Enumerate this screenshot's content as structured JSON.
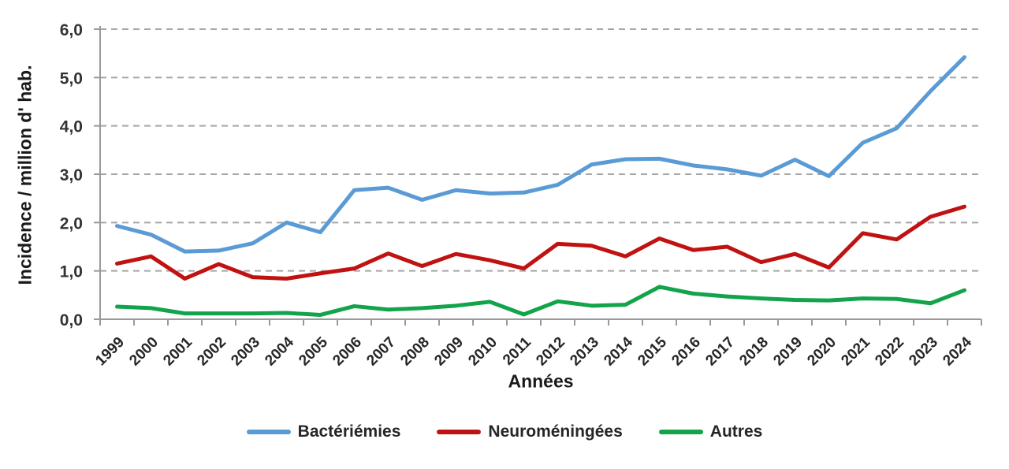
{
  "chart_data": {
    "type": "line",
    "title": "",
    "xlabel": "Années",
    "ylabel": "Incidence / million d' hab.",
    "x": [
      "1999",
      "2000",
      "2001",
      "2002",
      "2003",
      "2004",
      "2005",
      "2006",
      "2007",
      "2008",
      "2009",
      "2010",
      "2011",
      "2012",
      "2013",
      "2014",
      "2015",
      "2016",
      "2017",
      "2018",
      "2019",
      "2020",
      "2021",
      "2022",
      "2023",
      "2024"
    ],
    "series": [
      {
        "name": "Bactériémies",
        "color": "#5B9BD5",
        "values": [
          1.93,
          1.75,
          1.4,
          1.42,
          1.57,
          2.0,
          1.8,
          2.67,
          2.72,
          2.47,
          2.67,
          2.6,
          2.62,
          2.78,
          3.2,
          3.31,
          3.32,
          3.18,
          3.1,
          2.97,
          3.3,
          2.96,
          3.65,
          3.95,
          4.72,
          5.42
        ]
      },
      {
        "name": "Neuroméningées",
        "color": "#C11212",
        "values": [
          1.15,
          1.3,
          0.84,
          1.14,
          0.87,
          0.84,
          0.95,
          1.05,
          1.36,
          1.1,
          1.35,
          1.22,
          1.05,
          1.56,
          1.52,
          1.3,
          1.67,
          1.43,
          1.5,
          1.18,
          1.35,
          1.07,
          1.78,
          1.65,
          2.12,
          2.33
        ]
      },
      {
        "name": "Autres",
        "color": "#12A34B",
        "values": [
          0.26,
          0.23,
          0.12,
          0.12,
          0.12,
          0.13,
          0.09,
          0.27,
          0.2,
          0.23,
          0.28,
          0.36,
          0.1,
          0.37,
          0.28,
          0.3,
          0.67,
          0.53,
          0.47,
          0.43,
          0.4,
          0.39,
          0.43,
          0.42,
          0.33,
          0.6
        ]
      }
    ],
    "ylim": [
      0,
      6
    ],
    "ytick_step": 1,
    "ytick_labels": [
      "0,0",
      "1,0",
      "2,0",
      "3,0",
      "4,0",
      "5,0",
      "6,0"
    ],
    "grid": "horizontal-dashed",
    "legend_position": "bottom",
    "axis_color": "#9a9a9a",
    "gridline_color": "#a6a6a6"
  }
}
